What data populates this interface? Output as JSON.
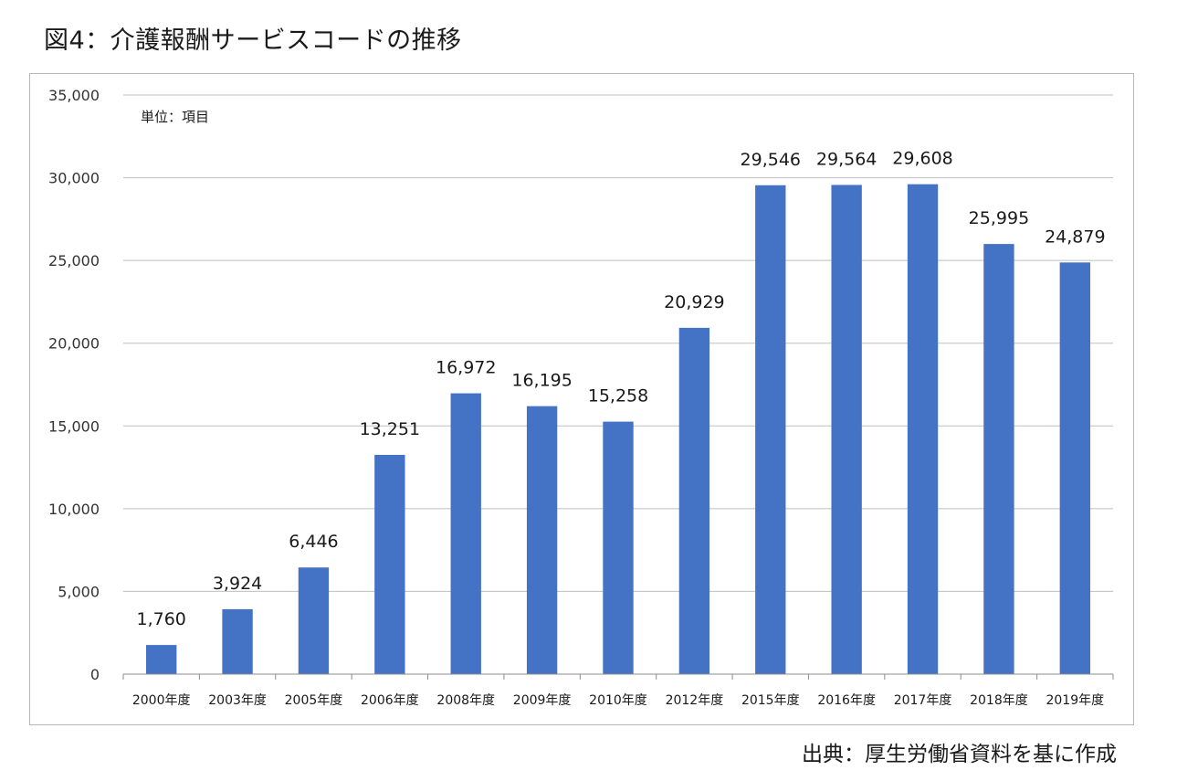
{
  "title": "図4：介護報酬サービスコードの推移",
  "source": "出典：厚生労働省資料を基に作成",
  "chart_data": {
    "type": "bar",
    "unit_label": "単位：項目",
    "categories": [
      "2000年度",
      "2003年度",
      "2005年度",
      "2006年度",
      "2008年度",
      "2009年度",
      "2010年度",
      "2012年度",
      "2015年度",
      "2016年度",
      "2017年度",
      "2018年度",
      "2019年度"
    ],
    "values": [
      1760,
      3924,
      6446,
      13251,
      16972,
      16195,
      15258,
      20929,
      29546,
      29564,
      29608,
      25995,
      24879
    ],
    "data_labels": [
      "1,760",
      "3,924",
      "6,446",
      "13,251",
      "16,972",
      "16,195",
      "15,258",
      "20,929",
      "29,546",
      "29,564",
      "29,608",
      "25,995",
      "24,879"
    ],
    "ylim": [
      0,
      35000
    ],
    "y_ticks": [
      0,
      5000,
      10000,
      15000,
      20000,
      25000,
      30000,
      35000
    ],
    "y_tick_labels": [
      "0",
      "5,000",
      "10,000",
      "15,000",
      "20,000",
      "25,000",
      "30,000",
      "35,000"
    ],
    "grid": true,
    "bar_color": "#4472c4",
    "grid_color": "#bfbfbf"
  }
}
